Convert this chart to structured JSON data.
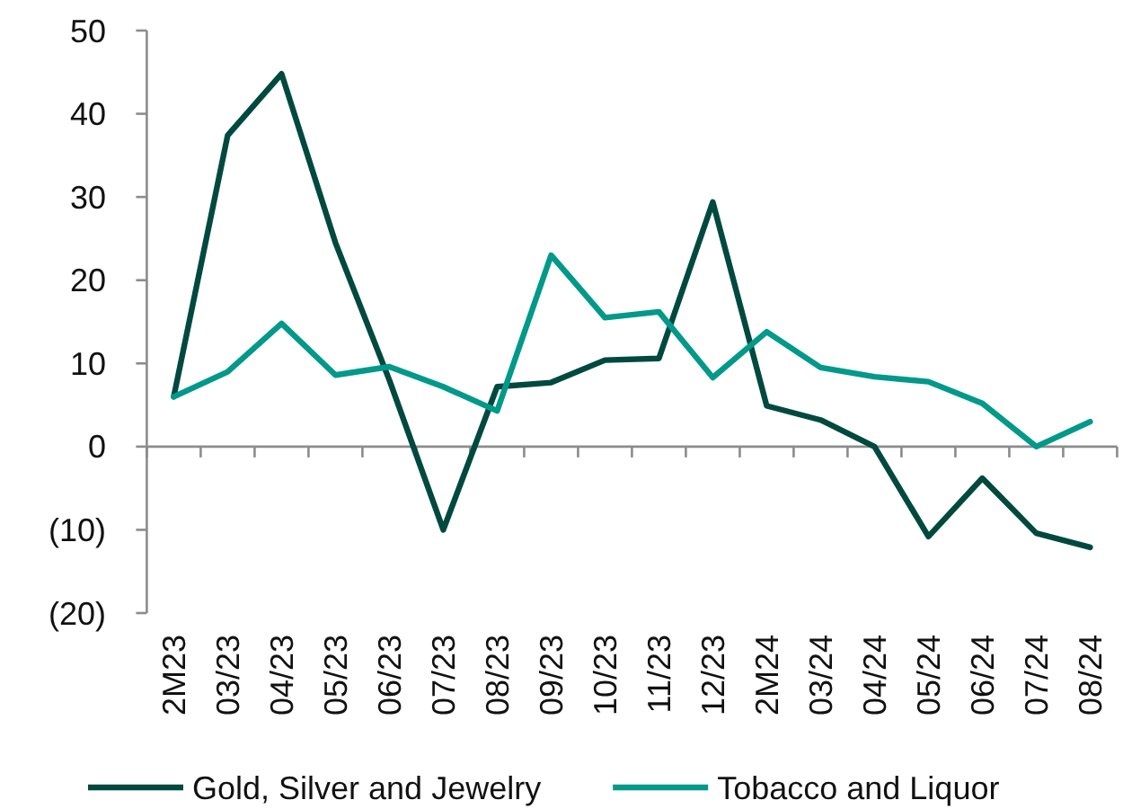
{
  "chart_data": {
    "type": "line",
    "categories": [
      "2M23",
      "03/23",
      "04/23",
      "05/23",
      "06/23",
      "07/23",
      "08/23",
      "09/23",
      "10/23",
      "11/23",
      "12/23",
      "2M24",
      "03/24",
      "04/24",
      "05/24",
      "06/24",
      "07/24",
      "08/24"
    ],
    "series": [
      {
        "name": "Gold, Silver and Jewelry",
        "color": "#00493f",
        "values": [
          6,
          37.4,
          44.8,
          24.5,
          8,
          -10,
          7.2,
          7.7,
          10.4,
          10.6,
          29.4,
          4.9,
          3.2,
          0,
          -10.8,
          -3.8,
          -10.4,
          -12.1
        ]
      },
      {
        "name": "Tobacco and Liquor",
        "color": "#00998a",
        "values": [
          6,
          9,
          14.8,
          8.6,
          9.6,
          7.2,
          4.3,
          23,
          15.5,
          16.2,
          8.3,
          13.8,
          9.5,
          8.4,
          7.8,
          5.2,
          0,
          3
        ]
      }
    ],
    "ylim": [
      -20,
      50
    ],
    "yticks": [
      {
        "value": -20,
        "label": "(20)"
      },
      {
        "value": -10,
        "label": "(10)"
      },
      0,
      10,
      20,
      30,
      40,
      50
    ],
    "legend": "bottom",
    "line_style": "solid"
  }
}
